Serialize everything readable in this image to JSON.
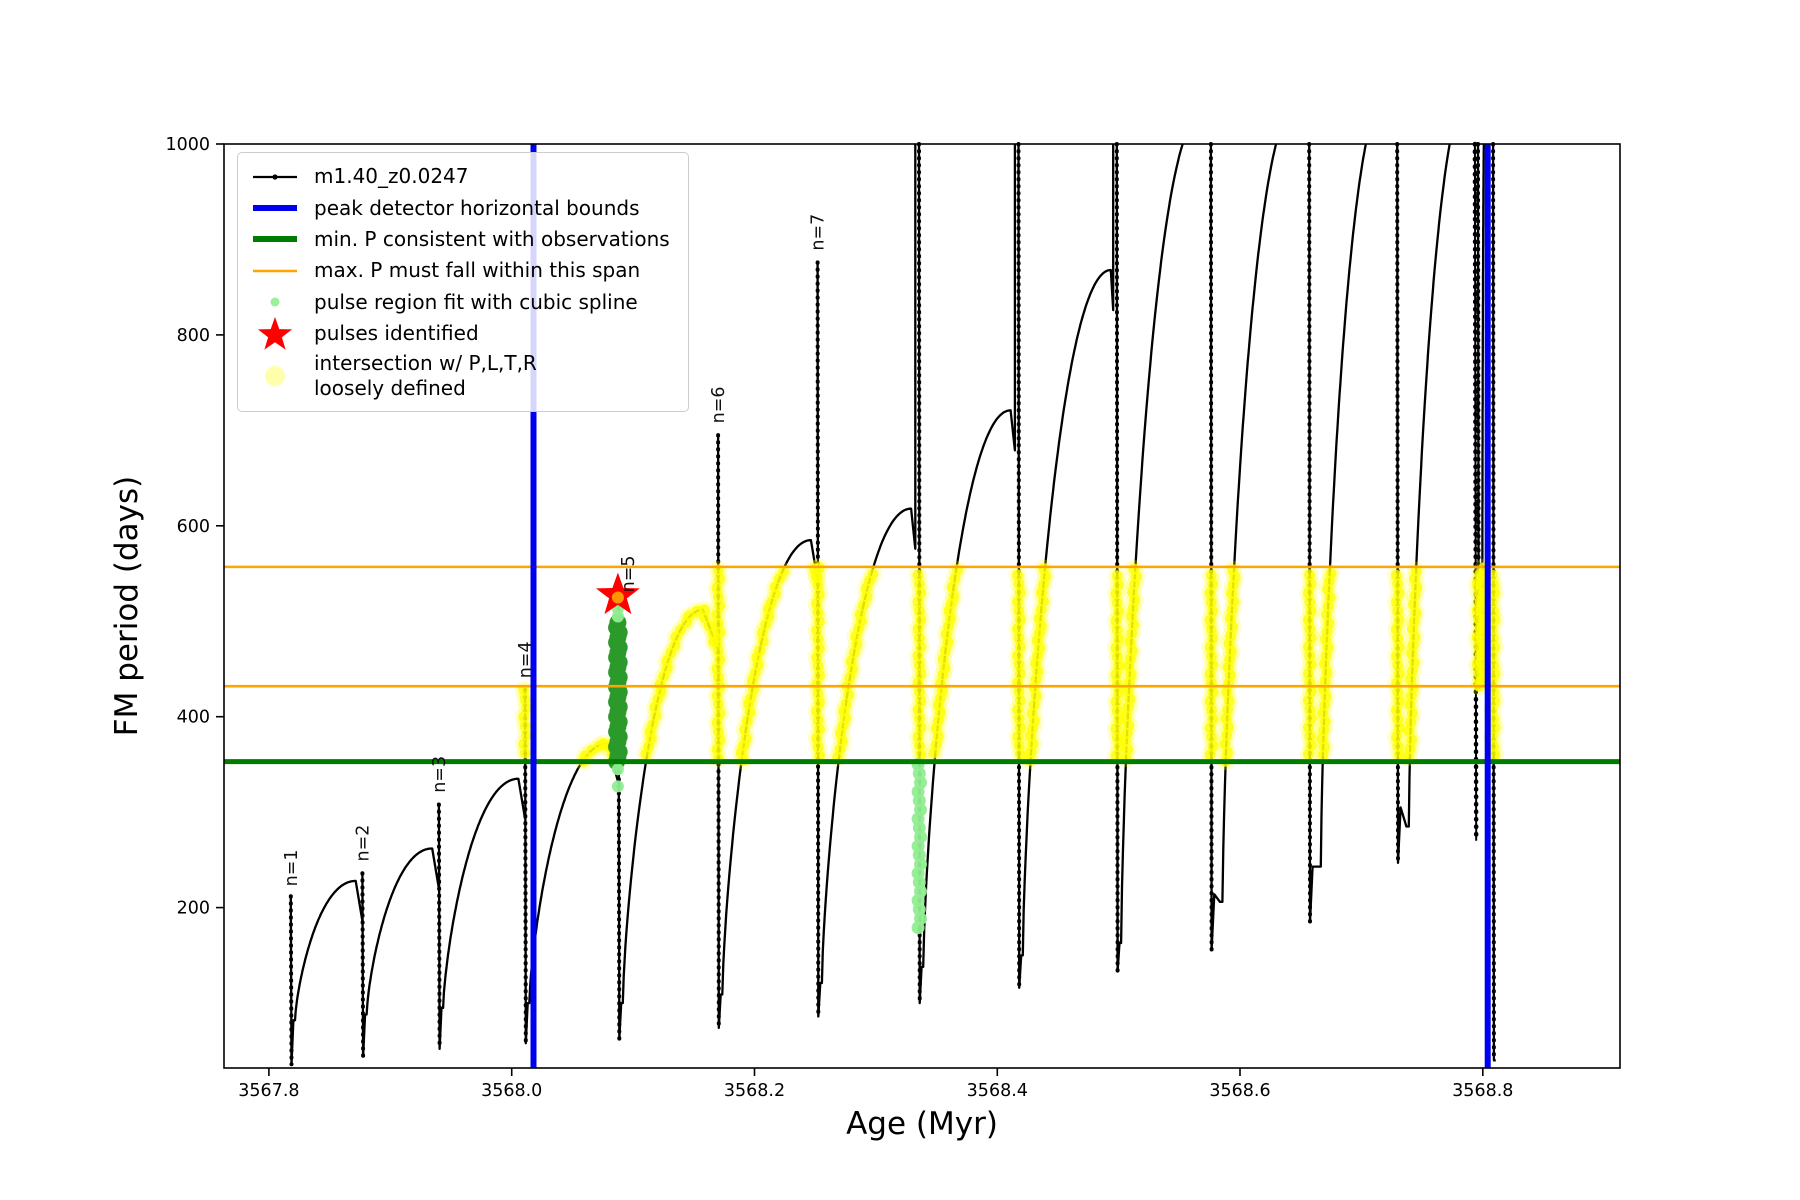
{
  "chart_data": {
    "type": "line",
    "title": "",
    "xlabel": "Age (Myr)",
    "ylabel": "FM period (days)",
    "xlim": [
      3567.763,
      3568.913
    ],
    "ylim": [
      32,
      1000
    ],
    "xticks": [
      3567.8,
      3568.0,
      3568.2,
      3568.4,
      3568.6,
      3568.8
    ],
    "yticks": [
      200,
      400,
      600,
      800,
      1000
    ],
    "series_label": "m1.40_z0.0247",
    "colors": {
      "series": "#000000",
      "peak_bounds": "#0000f0",
      "min_p": "#007d00",
      "max_p_span": "#ffa500",
      "spline_dots": "#90ee90",
      "pulse_star": "#ff0000",
      "intersection": "#ffff00",
      "green_bar": "#2b9a2b"
    },
    "hlines": {
      "min_P": 353,
      "max_P_span_upper": 557,
      "max_P_span_lower": 432
    },
    "vlines": {
      "peak_detector_bounds": [
        3568.018,
        3568.804
      ]
    },
    "intersection_band": [
      353,
      557
    ],
    "pulses": [
      {
        "x": 3567.818,
        "spike": 212,
        "tip": 36,
        "min": 82,
        "peak": 228,
        "peak_x": 3567.8715
      },
      {
        "x": 3567.877,
        "spike": 236,
        "tip": 44,
        "min": 88,
        "peak": 262,
        "peak_x": 3567.9345
      },
      {
        "x": 3567.94,
        "spike": 308,
        "tip": 52,
        "min": 95,
        "peak": 335,
        "peak_x": 3568.0055
      },
      {
        "x": 3568.011,
        "spike": 428,
        "tip": 58,
        "min": 100,
        "peak": 372,
        "peak_x": 3568.079
      },
      {
        "x": 3568.088,
        "spike": 518,
        "tip": 62,
        "min": 100,
        "peak": 512,
        "peak_x": 3568.1575
      },
      {
        "x": 3568.17,
        "spike": 695,
        "tip": 74,
        "min": 109,
        "peak": 585,
        "peak_x": 3568.2465
      },
      {
        "x": 3568.252,
        "spike": 876,
        "tip": 86,
        "min": 121,
        "peak": 618,
        "peak_x": 3568.329
      },
      {
        "x": 3568.3355,
        "spike": "clip",
        "tip": 100,
        "min": 138,
        "peak": 721,
        "peak_x": 3568.411
      },
      {
        "x": 3568.4175,
        "spike": "clip",
        "tip": 116,
        "min": 150,
        "peak": 868,
        "peak_x": 3568.4935
      },
      {
        "x": 3568.4985,
        "spike": "clip",
        "tip": 133,
        "min": 163,
        "peak": 1030,
        "peak_x": 3568.568
      },
      {
        "x": 3568.576,
        "spike": "clip",
        "tip": 156,
        "min": 206,
        "hump": true,
        "peak": 1040,
        "peak_x": 3568.646
      },
      {
        "x": 3568.657,
        "spike": "clip",
        "tip": 185,
        "min": 243,
        "hump": true,
        "peak": 1050,
        "peak_x": 3568.72
      },
      {
        "x": 3568.7295,
        "spike": "clip",
        "tip": 247,
        "min": 285,
        "hump": true,
        "peak": 1060,
        "peak_x": 3568.79
      },
      {
        "x": 3568.796,
        "spike": "clip",
        "tip": 430,
        "min": 432,
        "peak": 1020,
        "peak_x": 3568.8012
      },
      {
        "x": 3568.8085,
        "spike": "clip",
        "tip": 40,
        "min": 40,
        "peak": null,
        "peak_x": null
      }
    ],
    "dead_branch": {
      "x": 3568.7935,
      "from": 1000,
      "to": 270
    },
    "pulse_labels": [
      {
        "text": "n=1",
        "x": 3567.818,
        "y": 216
      },
      {
        "text": "n=2",
        "x": 3567.877,
        "y": 242
      },
      {
        "text": "n=3",
        "x": 3567.94,
        "y": 314
      },
      {
        "text": "n=4",
        "x": 3568.011,
        "y": 434
      },
      {
        "text": "n=5",
        "x": 3568.096,
        "y": 524
      },
      {
        "text": "n=6",
        "x": 3568.17,
        "y": 701
      },
      {
        "text": "n=7",
        "x": 3568.252,
        "y": 882
      }
    ],
    "star": {
      "x": 3568.0875,
      "y": 527
    },
    "green_bar": {
      "x": 3568.0875,
      "from": 353,
      "to": 503
    },
    "spline_column": {
      "x": 3568.3358,
      "from": 350,
      "to": 178
    },
    "spline_extras": [
      {
        "x": 3568.0875,
        "d": 505
      },
      {
        "x": 3568.0875,
        "d": 513
      },
      {
        "x": 3568.0875,
        "d": 345
      },
      {
        "x": 3568.0875,
        "d": 327
      }
    ]
  },
  "legend": {
    "items": [
      {
        "icon": "line-dot",
        "color": "#000000",
        "label": "m1.40_z0.0247"
      },
      {
        "icon": "thick-line",
        "color": "#0000f0",
        "label": "peak detector horizontal bounds"
      },
      {
        "icon": "thick-line",
        "color": "#007d00",
        "label": "min. P consistent with observations"
      },
      {
        "icon": "thin-line",
        "color": "#ffa500",
        "label": "max. P must fall within this span"
      },
      {
        "icon": "small-dot",
        "color": "#90ee90",
        "label": "pulse region fit with cubic spline"
      },
      {
        "icon": "star",
        "color": "#ff0000",
        "label": "pulses identified"
      },
      {
        "icon": "big-dot",
        "color": "#ffff00",
        "label": "intersection w/ P,L,T,R",
        "label2": "loosely defined"
      }
    ]
  }
}
